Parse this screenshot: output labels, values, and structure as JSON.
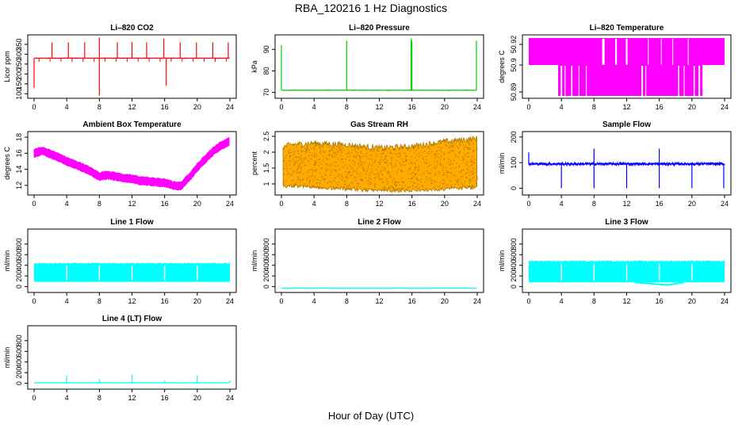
{
  "figure": {
    "title": "RBA_120216  1 Hz Diagnostics",
    "xlabel": "Hour of Day (UTC)"
  },
  "chart_data": [
    {
      "type": "line",
      "id": "co2",
      "title": "Li–820 CO2",
      "ylabel": "Licor ppm",
      "color": "#ff0000",
      "ylim": [
        85,
        390
      ],
      "yticks": [
        100,
        150,
        200,
        250,
        300,
        350
      ],
      "xticks": [
        0,
        4,
        8,
        12,
        16,
        20,
        24
      ],
      "xlim": [
        0,
        24
      ],
      "baseline": 280,
      "spikes": [
        [
          2.2,
          360
        ],
        [
          4.2,
          360
        ],
        [
          6.2,
          360
        ],
        [
          8.0,
          385
        ],
        [
          8.0,
          90
        ],
        [
          10.2,
          360
        ],
        [
          12.0,
          362
        ],
        [
          13.8,
          360
        ],
        [
          15.9,
          378
        ],
        [
          16.2,
          140
        ],
        [
          17.9,
          360
        ],
        [
          19.9,
          360
        ],
        [
          21.9,
          360
        ],
        [
          23.8,
          360
        ],
        [
          0.0,
          130
        ]
      ],
      "mode": "baseline"
    },
    {
      "type": "line",
      "id": "pressure",
      "title": "Li–820 Pressure",
      "ylabel": "kPa",
      "color": "#00cc00",
      "ylim": [
        68,
        96
      ],
      "yticks": [
        70,
        80,
        90
      ],
      "xticks": [
        0,
        4,
        8,
        12,
        16,
        20,
        24
      ],
      "xlim": [
        0,
        24
      ],
      "baseline": 71,
      "spikes": [
        [
          0.0,
          92
        ],
        [
          8.0,
          94
        ],
        [
          15.9,
          95
        ],
        [
          16.0,
          94
        ],
        [
          23.9,
          94
        ]
      ],
      "mode": "baseline"
    },
    {
      "type": "step",
      "id": "temperature",
      "title": "Li–820 Temperature",
      "ylabel": "degrees C",
      "color": "#ff00ff",
      "ytick_labels": [
        "50.89",
        "50.9",
        "50.92"
      ],
      "xticks": [
        0,
        4,
        8,
        12,
        16,
        20,
        24
      ],
      "xlim": [
        0,
        24
      ],
      "levels": [
        "hi",
        "lo"
      ],
      "mode": "twolevel"
    },
    {
      "type": "line",
      "id": "ambient",
      "title": "Ambient Box Temperature",
      "ylabel": "degrees C",
      "color": "#ff00ff",
      "ylim": [
        11,
        18.5
      ],
      "yticks": [
        12,
        14,
        16,
        18
      ],
      "xticks": [
        0,
        4,
        8,
        12,
        16,
        20,
        24
      ],
      "xlim": [
        0,
        24
      ],
      "curve": [
        [
          0,
          16.0
        ],
        [
          1,
          16.3
        ],
        [
          2,
          15.9
        ],
        [
          3,
          15.5
        ],
        [
          4,
          15.0
        ],
        [
          5,
          14.6
        ],
        [
          6,
          14.2
        ],
        [
          7,
          13.7
        ],
        [
          8,
          13.1
        ],
        [
          9,
          13.3
        ],
        [
          10,
          13.1
        ],
        [
          11,
          12.9
        ],
        [
          12,
          12.8
        ],
        [
          13,
          12.6
        ],
        [
          14,
          12.5
        ],
        [
          15,
          12.4
        ],
        [
          16,
          12.3
        ],
        [
          17,
          12.0
        ],
        [
          18,
          11.9
        ],
        [
          19,
          13.0
        ],
        [
          20,
          14.2
        ],
        [
          21,
          15.3
        ],
        [
          22,
          16.3
        ],
        [
          23,
          17.0
        ],
        [
          24,
          17.5
        ]
      ],
      "band": 0.8,
      "mode": "band"
    },
    {
      "type": "scatter",
      "id": "rh",
      "title": "Gas Stream RH",
      "ylabel": "percent",
      "color": "#ffaa00",
      "color2": "#aa7700",
      "ylim": [
        0.7,
        2.6
      ],
      "yticks": [
        1.0,
        1.5,
        2.0,
        2.5
      ],
      "xticks": [
        0,
        4,
        8,
        12,
        16,
        20,
        24
      ],
      "xlim": [
        0,
        24
      ],
      "upper": [
        [
          0,
          2.1
        ],
        [
          1,
          2.2
        ],
        [
          4,
          2.25
        ],
        [
          8,
          2.2
        ],
        [
          12,
          2.1
        ],
        [
          16,
          2.15
        ],
        [
          20,
          2.3
        ],
        [
          24,
          2.4
        ]
      ],
      "lower": [
        [
          0,
          1.0
        ],
        [
          4,
          0.95
        ],
        [
          8,
          0.9
        ],
        [
          12,
          0.85
        ],
        [
          16,
          0.85
        ],
        [
          20,
          0.9
        ],
        [
          24,
          0.95
        ]
      ],
      "mode": "noise"
    },
    {
      "type": "line",
      "id": "sample",
      "title": "Sample Flow",
      "ylabel": "ml/min",
      "color": "#0000ff",
      "ylim": [
        -20,
        215
      ],
      "yticks": [
        0,
        100,
        200
      ],
      "xticks": [
        0,
        4,
        8,
        12,
        16,
        20,
        24
      ],
      "xlim": [
        0,
        24
      ],
      "baseline": 95,
      "spikes": [
        [
          0.0,
          140
        ],
        [
          4.0,
          0
        ],
        [
          8.0,
          155
        ],
        [
          8.0,
          0
        ],
        [
          12.0,
          0
        ],
        [
          16.0,
          155
        ],
        [
          16.0,
          0
        ],
        [
          20.0,
          0
        ],
        [
          23.9,
          0
        ]
      ],
      "mode": "baseline"
    },
    {
      "type": "line",
      "id": "line1",
      "title": "Line 1 Flow",
      "ylabel": "ml/min",
      "color": "#00ffff",
      "ylim": [
        -80,
        1050
      ],
      "yticks": [
        0,
        200,
        400,
        600,
        800
      ],
      "xticks": [
        0,
        4,
        8,
        12,
        16,
        20,
        24
      ],
      "xlim": [
        0,
        24
      ],
      "band_lo": 90,
      "band_hi": 430,
      "mode": "block"
    },
    {
      "type": "line",
      "id": "line2",
      "title": "Line 2 Flow",
      "ylabel": "ml/min",
      "color": "#00ffff",
      "ylim": [
        -80,
        1050
      ],
      "yticks": [
        0,
        200,
        400,
        600,
        800
      ],
      "xticks": [
        0,
        4,
        8,
        12,
        16,
        20,
        24
      ],
      "xlim": [
        0,
        24
      ],
      "baseline": -30,
      "spikes": [],
      "mode": "baseline"
    },
    {
      "type": "line",
      "id": "line3",
      "title": "Line 3 Flow",
      "ylabel": "ml/min",
      "color": "#00ffff",
      "ylim": [
        -80,
        1050
      ],
      "yticks": [
        0,
        200,
        400,
        600,
        800
      ],
      "xticks": [
        0,
        4,
        8,
        12,
        16,
        20,
        24
      ],
      "xlim": [
        0,
        24
      ],
      "band_lo": 80,
      "band_hi": 470,
      "mode": "block"
    },
    {
      "type": "line",
      "id": "line4",
      "title": "Line 4 (LT) Flow",
      "ylabel": "ml/min",
      "color": "#00ffff",
      "ylim": [
        -80,
        1050
      ],
      "yticks": [
        0,
        200,
        400,
        600,
        800
      ],
      "xticks": [
        0,
        4,
        8,
        12,
        16,
        20,
        24
      ],
      "xlim": [
        0,
        24
      ],
      "baseline": 10,
      "spikes": [
        [
          4.0,
          150
        ],
        [
          8.0,
          80
        ],
        [
          12.0,
          160
        ],
        [
          16.0,
          60
        ],
        [
          20.0,
          150
        ],
        [
          24.0,
          60
        ]
      ],
      "mode": "baseline"
    }
  ]
}
